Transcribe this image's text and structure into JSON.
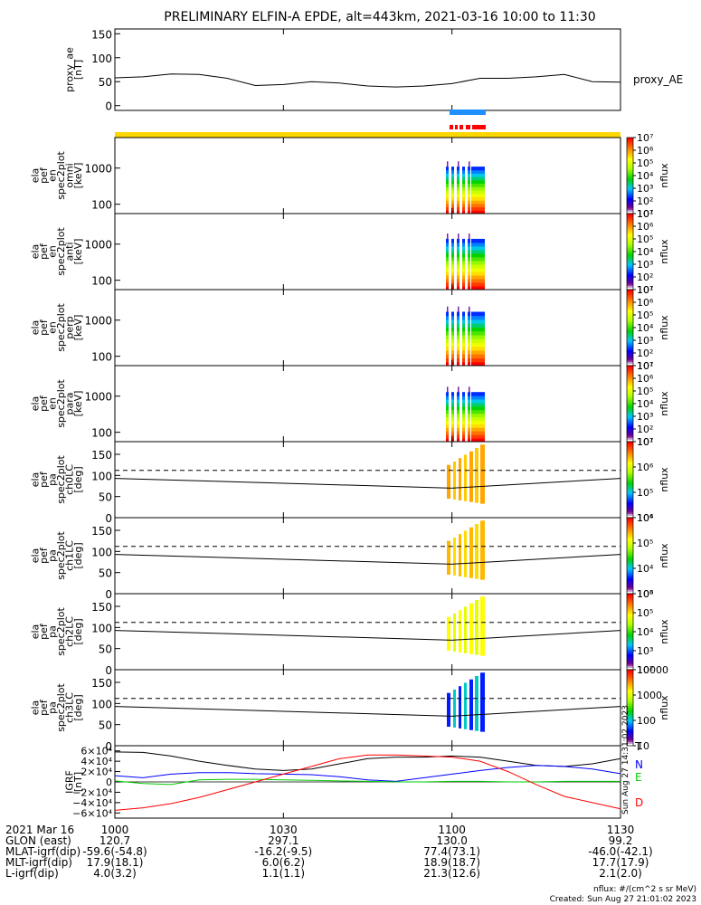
{
  "title": "PRELIMINARY ELFIN-A EPDE, alt=443km, 2021-03-16 10:00 to 11:30",
  "chart_data": [
    {
      "type": "line",
      "id": "proxy_ae",
      "ylabel": [
        "proxy_ae",
        "[nT]"
      ],
      "yticks": [
        "150",
        "100",
        "50",
        "0"
      ],
      "ylim": [
        -10,
        160
      ],
      "series": [
        {
          "name": "proxy_AE",
          "x": [
            0,
            5,
            10,
            15,
            20,
            25,
            30,
            35,
            40,
            45,
            50,
            55,
            60,
            65,
            70,
            75,
            80,
            85,
            90
          ],
          "values": [
            58,
            60,
            66,
            65,
            57,
            42,
            44,
            50,
            47,
            41,
            39,
            41,
            46,
            57,
            57,
            60,
            65,
            50,
            49
          ]
        }
      ],
      "legend": "right"
    },
    {
      "type": "heatmap",
      "id": "omni",
      "ylabel": [
        "ela",
        "pef",
        "en",
        "spec2plot",
        "omni",
        "[keV]"
      ],
      "yticks": [
        "1000",
        "100"
      ],
      "ylim_log": [
        55,
        7000
      ],
      "colorbar": {
        "label": "nflux",
        "ticks": [
          "10⁷",
          "10⁶",
          "10⁵",
          "10⁴",
          "10³",
          "10²",
          "10¹"
        ]
      }
    },
    {
      "type": "heatmap",
      "id": "anti",
      "ylabel": [
        "ela",
        "pef",
        "en",
        "spec2plot",
        "anti",
        "[keV]"
      ],
      "yticks": [
        "1000",
        "100"
      ],
      "ylim_log": [
        55,
        7000
      ],
      "colorbar": {
        "label": "nflux",
        "ticks": [
          "10⁷",
          "10⁶",
          "10⁵",
          "10⁴",
          "10³",
          "10²",
          "10¹"
        ]
      }
    },
    {
      "type": "heatmap",
      "id": "perp",
      "ylabel": [
        "ela",
        "pef",
        "en",
        "spec2plot",
        "perp",
        "[keV]"
      ],
      "yticks": [
        "1000",
        "100"
      ],
      "ylim_log": [
        55,
        7000
      ],
      "colorbar": {
        "label": "nflux",
        "ticks": [
          "10⁷",
          "10⁶",
          "10⁵",
          "10⁴",
          "10³",
          "10²",
          "10¹"
        ]
      }
    },
    {
      "type": "heatmap",
      "id": "para",
      "ylabel": [
        "ela",
        "pef",
        "en",
        "spec2plot",
        "para",
        "[keV]"
      ],
      "yticks": [
        "1000",
        "100"
      ],
      "ylim_log": [
        55,
        7000
      ],
      "colorbar": {
        "label": "nflux",
        "ticks": [
          "10⁷",
          "10⁶",
          "10⁵",
          "10⁴",
          "10³",
          "10²",
          "10¹"
        ]
      }
    },
    {
      "type": "heatmap",
      "id": "ch0LC",
      "ylabel": [
        "ela",
        "pef",
        "pa",
        "spec2plot",
        "ch0LC",
        "[deg]"
      ],
      "yticks": [
        "150",
        "100",
        "50",
        "0"
      ],
      "ylim": [
        0,
        180
      ],
      "colorbar": {
        "label": "nflux",
        "ticks": [
          "10⁷",
          "10⁶",
          "10⁵",
          "10⁴"
        ]
      }
    },
    {
      "type": "heatmap",
      "id": "ch1LC",
      "ylabel": [
        "ela",
        "pef",
        "pa",
        "spec2plot",
        "ch1LC",
        "[deg]"
      ],
      "yticks": [
        "150",
        "100",
        "50",
        "0"
      ],
      "ylim": [
        0,
        180
      ],
      "colorbar": {
        "label": "nflux",
        "ticks": [
          "10⁶",
          "10⁵",
          "10⁴",
          "10³"
        ]
      }
    },
    {
      "type": "heatmap",
      "id": "ch2LC",
      "ylabel": [
        "ela",
        "pef",
        "pa",
        "spec2plot",
        "ch2LC",
        "[deg]"
      ],
      "yticks": [
        "150",
        "100",
        "50",
        "0"
      ],
      "ylim": [
        0,
        180
      ],
      "colorbar": {
        "label": "nflux",
        "ticks": [
          "10⁶",
          "10⁵",
          "10⁴",
          "10³",
          "10²"
        ]
      }
    },
    {
      "type": "heatmap",
      "id": "ch3LC",
      "ylabel": [
        "ela",
        "pef",
        "pa",
        "spec2plot",
        "ch3LC",
        "[deg]"
      ],
      "yticks": [
        "150",
        "100",
        "50",
        "0"
      ],
      "ylim": [
        0,
        180
      ],
      "colorbar": {
        "label": "nflux",
        "ticks": [
          "10000",
          "1000",
          "100",
          "10"
        ]
      }
    },
    {
      "type": "line",
      "id": "igrf",
      "ylabel": [
        "IGRF",
        "[nT]"
      ],
      "yticks": [
        "6×10⁴",
        "4×10⁴",
        "2×10⁴",
        "0",
        "−2×10⁴",
        "−4×10⁴",
        "−6×10⁴"
      ],
      "ylim": [
        -70000,
        70000
      ],
      "x": [
        0,
        5,
        10,
        15,
        20,
        25,
        30,
        35,
        40,
        45,
        50,
        55,
        60,
        65,
        70,
        75,
        80,
        85,
        90
      ],
      "series": [
        {
          "name": "T",
          "color": "#000000",
          "values": [
            58000,
            57000,
            50000,
            40000,
            32000,
            25000,
            22000,
            25000,
            35000,
            45000,
            48000,
            48000,
            50000,
            48000,
            40000,
            32000,
            30000,
            35000,
            45000
          ]
        },
        {
          "name": "N",
          "color": "#0000ff",
          "values": [
            12000,
            8000,
            15000,
            18000,
            18000,
            16000,
            15000,
            14000,
            10000,
            4000,
            1000,
            8000,
            15000,
            22000,
            28000,
            32000,
            30000,
            25000,
            16000
          ]
        },
        {
          "name": "E",
          "color": "#00cc00",
          "values": [
            2000,
            -3000,
            -5000,
            4000,
            5000,
            5000,
            4000,
            3000,
            2000,
            1000,
            0,
            0,
            1000,
            1000,
            0,
            0,
            1000,
            1000,
            1000
          ]
        },
        {
          "name": "D",
          "color": "#ff0000",
          "values": [
            -55000,
            -50000,
            -42000,
            -30000,
            -15000,
            0,
            15000,
            30000,
            45000,
            52000,
            52000,
            50000,
            48000,
            40000,
            20000,
            -5000,
            -28000,
            -40000,
            -52000
          ]
        }
      ]
    }
  ],
  "xaxis": {
    "ticks": [
      "1000",
      "1030",
      "1100",
      "1130"
    ]
  },
  "footer": {
    "rows": [
      {
        "label": "2021 Mar 16",
        "values": [
          "",
          "",
          "",
          ""
        ]
      },
      {
        "label": "GLON (east)",
        "values": [
          "120.7",
          "297.1",
          "130.0",
          "99.2"
        ]
      },
      {
        "label": "MLAT-igrf(dip)",
        "values": [
          "-59.6(-54.8)",
          "-16.2(-9.5)",
          "77.4(73.1)",
          "-46.0(-42.1)"
        ]
      },
      {
        "label": "MLT-igrf(dip)",
        "values": [
          "17.9(18.1)",
          "6.0(6.2)",
          "18.9(18.7)",
          "17.7(17.9)"
        ]
      },
      {
        "label": "L-igrf(dip)",
        "values": [
          "4.0(3.2)",
          "1.1(1.1)",
          "21.3(12.6)",
          "2.1(2.0)"
        ]
      }
    ],
    "units": "nflux: #/(cm^2 s sr MeV)",
    "created": "Created: Sun Aug 27 21:01:02 2023",
    "sidestamp": "Sun Aug 27 14:31:02 2023"
  },
  "colors": {
    "sci_bar": "#ffd700",
    "epde_bar_blue": "#1e90ff",
    "epde_bar_red": "#ff0000"
  }
}
